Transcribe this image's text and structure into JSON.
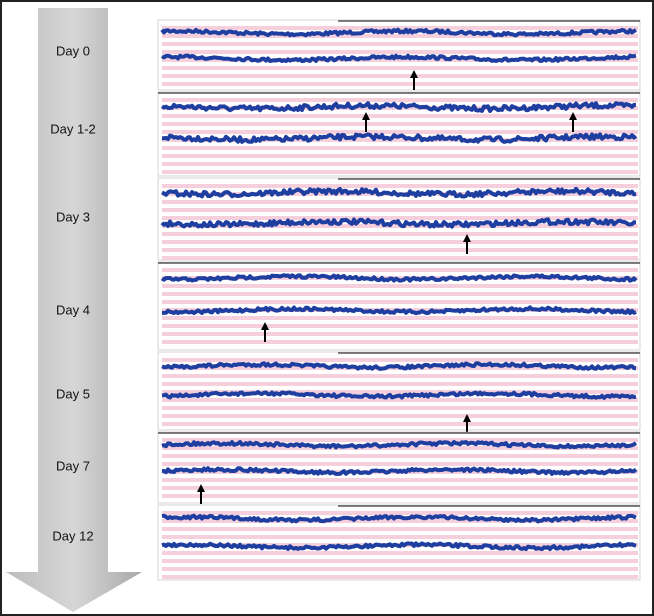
{
  "days": [
    "Day 0",
    "Day 1-2",
    "Day 3",
    "Day 4",
    "Day 5",
    "Day 7",
    "Day 12"
  ]
}
